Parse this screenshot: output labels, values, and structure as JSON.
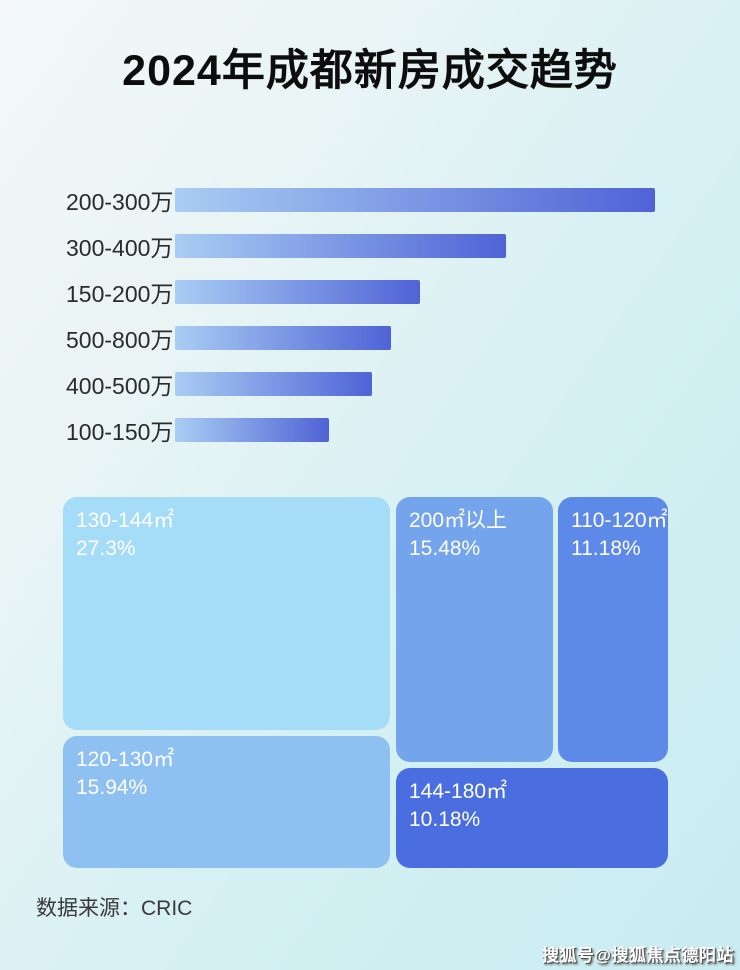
{
  "page": {
    "title": "2024年成都新房成交趋势",
    "source": "数据来源：CRIC",
    "watermark": "搜狐号@搜狐焦点德阳站"
  },
  "colors": {
    "background_top_left": "#f4f8f8",
    "background_bottom": "#c8ecf1",
    "bar_gradient_start": "#a9cdf3",
    "bar_gradient_end": "#4f63d6",
    "title_text": "#0d0d0d",
    "bar_label_text": "#2b2b2b",
    "treemap_text": "#ffffff",
    "source_text": "#3a3a3a"
  },
  "chart_data": [
    {
      "type": "bar",
      "orientation": "horizontal",
      "title": "2024年成都新房成交趋势",
      "categories": [
        "200-300万",
        "300-400万",
        "150-200万",
        "500-800万",
        "400-500万",
        "100-150万"
      ],
      "values_pct_of_max": [
        100,
        69,
        51,
        45,
        41,
        32
      ],
      "value_labels_shown": false,
      "axis_shown": false,
      "grid": false,
      "legend": false
    },
    {
      "type": "treemap",
      "items": [
        {
          "label": "130-144㎡",
          "pct_text": "27.3%",
          "value": 27.3,
          "color": "#a5dcf8"
        },
        {
          "label": "120-130㎡",
          "pct_text": "15.94%",
          "value": 15.94,
          "color": "#8fc0f2"
        },
        {
          "label": "200㎡以上",
          "pct_text": "15.48%",
          "value": 15.48,
          "color": "#74a4ec"
        },
        {
          "label": "110-120㎡",
          "pct_text": "11.18%",
          "value": 11.18,
          "color": "#5d8ae8"
        },
        {
          "label": "144-180㎡",
          "pct_text": "10.18%",
          "value": 10.18,
          "color": "#4a6ee0"
        }
      ]
    }
  ]
}
